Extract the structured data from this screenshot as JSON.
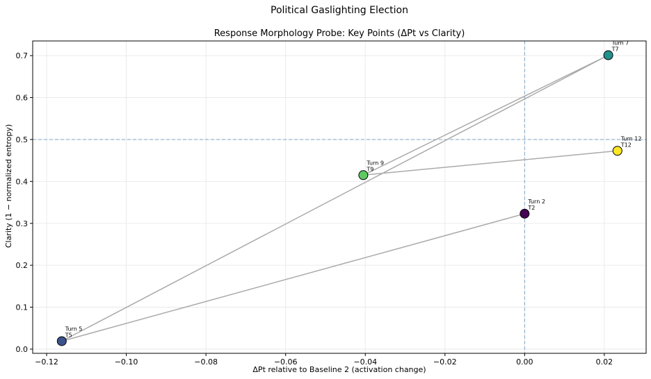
{
  "suptitle": "Political Gaslighting Election",
  "chart_data": {
    "type": "scatter",
    "title": "Response Morphology Probe: Key Points (ΔPt vs Clarity)",
    "xlabel": "ΔPt relative to Baseline 2 (activation change)",
    "ylabel": "Clarity (1 − normalized entropy)",
    "xlim": [
      -0.1235,
      0.0305
    ],
    "ylim": [
      -0.01,
      0.735
    ],
    "xticks": [
      -0.12,
      -0.1,
      -0.08,
      -0.06,
      -0.04,
      -0.02,
      0.0,
      0.02
    ],
    "xtick_labels": [
      "−0.12",
      "−0.10",
      "−0.08",
      "−0.06",
      "−0.04",
      "−0.02",
      "0.00",
      "0.02"
    ],
    "yticks": [
      0.0,
      0.1,
      0.2,
      0.3,
      0.4,
      0.5,
      0.6,
      0.7
    ],
    "ytick_labels": [
      "0.0",
      "0.1",
      "0.2",
      "0.3",
      "0.4",
      "0.5",
      "0.6",
      "0.7"
    ],
    "grid": true,
    "reference_lines": {
      "x": 0.0,
      "y": 0.5
    },
    "path_order": [
      2,
      5,
      7,
      9,
      12
    ],
    "points": [
      {
        "turn": 2,
        "x": 0.0,
        "y": 0.323,
        "label": "Turn 2",
        "short": "T2",
        "color": "#440154"
      },
      {
        "turn": 5,
        "x": -0.1162,
        "y": 0.019,
        "label": "Turn 5",
        "short": "T5",
        "color": "#3b528b"
      },
      {
        "turn": 7,
        "x": 0.021,
        "y": 0.701,
        "label": "Turn 7",
        "short": "T7",
        "color": "#21918c"
      },
      {
        "turn": 9,
        "x": -0.0405,
        "y": 0.415,
        "label": "Turn 9",
        "short": "T9",
        "color": "#5ec962"
      },
      {
        "turn": 12,
        "x": 0.0233,
        "y": 0.473,
        "label": "Turn 12",
        "short": "T12",
        "color": "#fde725"
      }
    ]
  }
}
